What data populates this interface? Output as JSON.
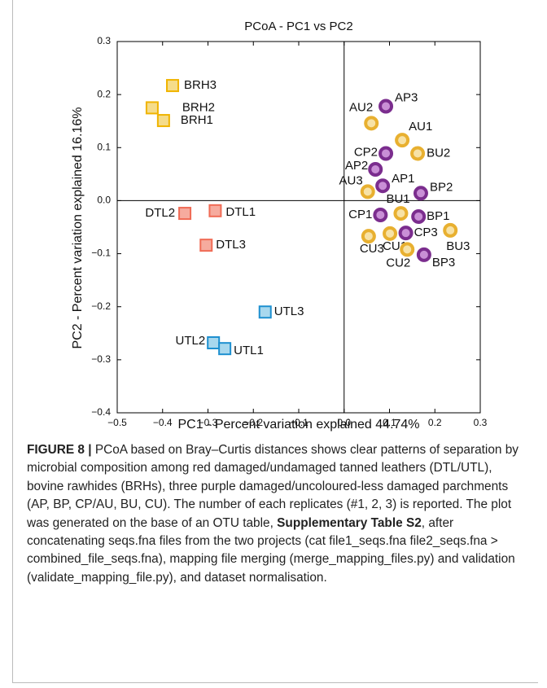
{
  "chart_data": {
    "type": "scatter",
    "title": "PCoA - PC1 vs PC2",
    "x_label": "PC1 - Percent variation explained 44.74%",
    "y_label": "PC2 - Percent variation explained 16.16%",
    "xlim": [
      -0.5,
      0.3
    ],
    "xticks": [
      {
        "value": -0.5,
        "label": "−0.5"
      },
      {
        "value": -0.4,
        "label": "−0.4"
      },
      {
        "value": -0.3,
        "label": "−0.3"
      },
      {
        "value": -0.2,
        "label": "−0.2"
      },
      {
        "value": -0.1,
        "label": "−0.1"
      },
      {
        "value": 0,
        "label": "0.0"
      },
      0.1,
      0.2,
      0.3
    ],
    "ylim": [
      -0.4,
      0.3
    ],
    "yticks": [
      {
        "value": -0.4,
        "label": "−0.4"
      },
      {
        "value": -0.3,
        "label": "−0.3"
      },
      {
        "value": -0.2,
        "label": "−0.2"
      },
      {
        "value": -0.1,
        "label": "−0.1"
      },
      {
        "value": 0,
        "label": "0.0"
      },
      0.1,
      0.2,
      0.3
    ],
    "series": [
      {
        "marker": "square",
        "color": "#f0b400",
        "labels": [
          "BRH3",
          "BRH2",
          "BRH1"
        ],
        "x": [
          -0.378,
          -0.423,
          -0.398
        ],
        "values": [
          0.217,
          0.175,
          0.151
        ]
      },
      {
        "marker": "square",
        "color": "#f06b55",
        "labels": [
          "DTL2",
          "DTL1",
          "DTL3"
        ],
        "x": [
          -0.351,
          -0.284,
          -0.304
        ],
        "values": [
          -0.024,
          -0.019,
          -0.084
        ]
      },
      {
        "marker": "square",
        "color": "#1e90d0",
        "labels": [
          "UTL3",
          "UTL2",
          "UTL1"
        ],
        "x": [
          -0.174,
          -0.288,
          -0.263
        ],
        "values": [
          -0.21,
          -0.268,
          -0.279
        ]
      },
      {
        "marker": "circle",
        "color": "#7b2d8e",
        "labels": [
          "AP3",
          "CP2",
          "AP2",
          "AP1",
          "BP2",
          "CP1",
          "BP1",
          "CP3",
          "BP3"
        ],
        "x": [
          0.092,
          0.092,
          0.069,
          0.085,
          0.169,
          0.08,
          0.164,
          0.136,
          0.176
        ],
        "values": [
          0.178,
          0.089,
          0.059,
          0.028,
          0.014,
          -0.027,
          -0.03,
          -0.061,
          -0.102
        ]
      },
      {
        "marker": "circle",
        "color": "#e8b030",
        "labels": [
          "AU2",
          "AU1",
          "BU2",
          "AU3",
          "BU1",
          "BU3",
          "CU3",
          "CU1",
          "CU2"
        ],
        "x": [
          0.06,
          0.128,
          0.162,
          0.052,
          0.125,
          0.234,
          0.054,
          0.101,
          0.139
        ],
        "values": [
          0.146,
          0.114,
          0.089,
          0.017,
          -0.024,
          -0.056,
          -0.067,
          -0.062,
          -0.092
        ]
      }
    ]
  },
  "caption": {
    "label": "FIGURE 8 |",
    "text": " PCoA based on Bray–Curtis distances shows clear patterns of separation by microbial composition among red damaged/undamaged tanned leathers (DTL/UTL), bovine rawhides (BRHs), three purple damaged/uncoloured-less damaged parchments (AP, BP, CP/AU, BU, CU). The number of each replicates (#1, 2, 3) is reported. The plot was generated on the base of an OTU table, ",
    "link": "Supplementary Table S2",
    "text_end": ", after concatenating seqs.fna files from the two projects (cat file1_seqs.fna file2_seqs.fna > combined_file_seqs.fna), mapping file merging (merge_mapping_files.py) and validation (validate_mapping_file.py), and dataset normalisation."
  }
}
